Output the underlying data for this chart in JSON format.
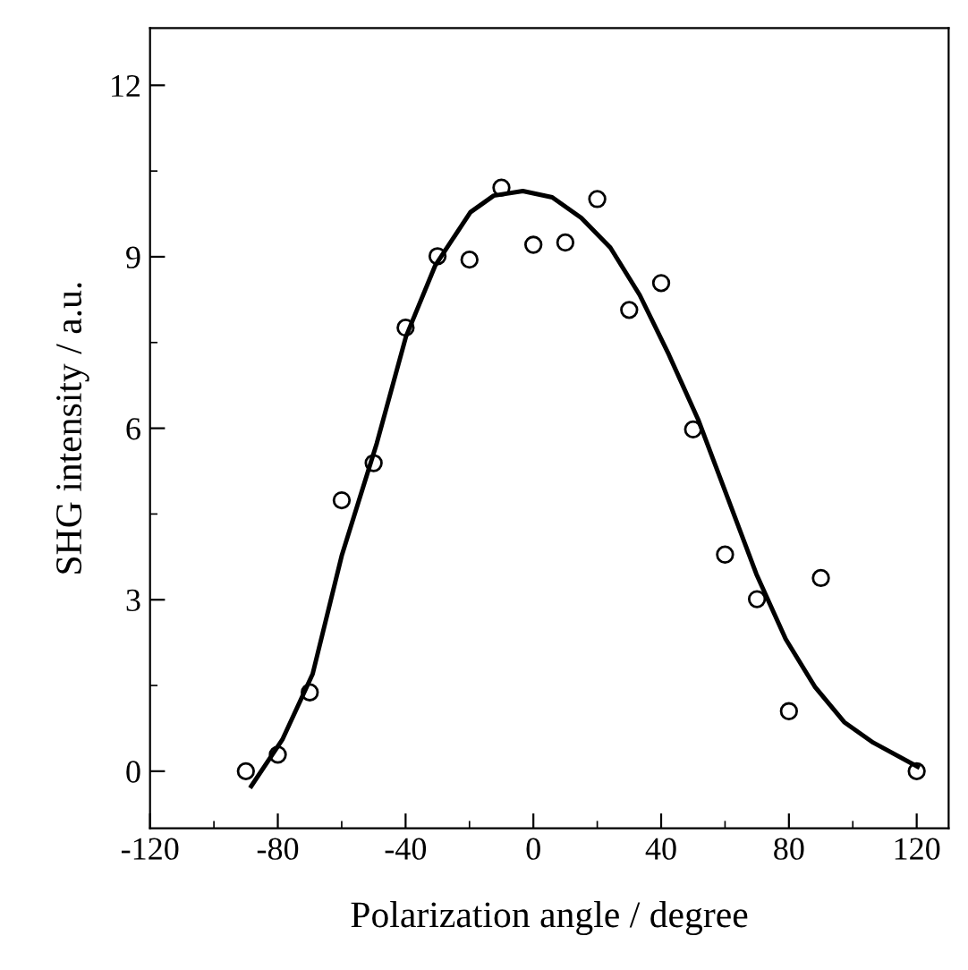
{
  "chart_data": {
    "type": "scatter",
    "xlabel": "Polarization angle / degree",
    "ylabel": "SHG intensity / a.u.",
    "xlim": [
      -120,
      130
    ],
    "xticks": [
      -120,
      -80,
      -40,
      0,
      40,
      80,
      120
    ],
    "ylim": [
      -1,
      13
    ],
    "yticks": [
      0,
      3,
      6,
      9,
      12
    ],
    "grid": false,
    "legend": false,
    "series": [
      {
        "color": "#000000",
        "marker": "circle",
        "x": [
          -90,
          -80,
          -70,
          -60,
          -50,
          -40,
          -30,
          -20,
          -10,
          0,
          10,
          20,
          30,
          40,
          50,
          60,
          70,
          80,
          90,
          120
        ],
        "values": [
          0,
          0.29,
          1.38,
          4.74,
          5.39,
          7.76,
          9.01,
          8.95,
          10.21,
          9.21,
          9.25,
          10.01,
          8.07,
          8.54,
          5.98,
          3.79,
          3.01,
          1.05,
          3.38,
          0
        ]
      },
      {
        "type": "line",
        "color": "#000000",
        "marker": "none",
        "line_style": "solid",
        "x": [
          -88.3,
          -78.6,
          -69.1,
          -60,
          -49,
          -39.9,
          -30.7,
          -19.7,
          -12.4,
          -3.3,
          5.9,
          15,
          24.1,
          33.3,
          42.4,
          51.6,
          60.7,
          69.8,
          79,
          88.1,
          97.3,
          106.4,
          120.3
        ],
        "values": [
          -0.26,
          0.55,
          1.7,
          3.77,
          5.74,
          7.6,
          8.85,
          9.78,
          10.07,
          10.15,
          10.04,
          9.68,
          9.16,
          8.33,
          7.29,
          6.15,
          4.8,
          3.45,
          2.31,
          1.48,
          0.86,
          0.5,
          0.08
        ]
      }
    ]
  }
}
